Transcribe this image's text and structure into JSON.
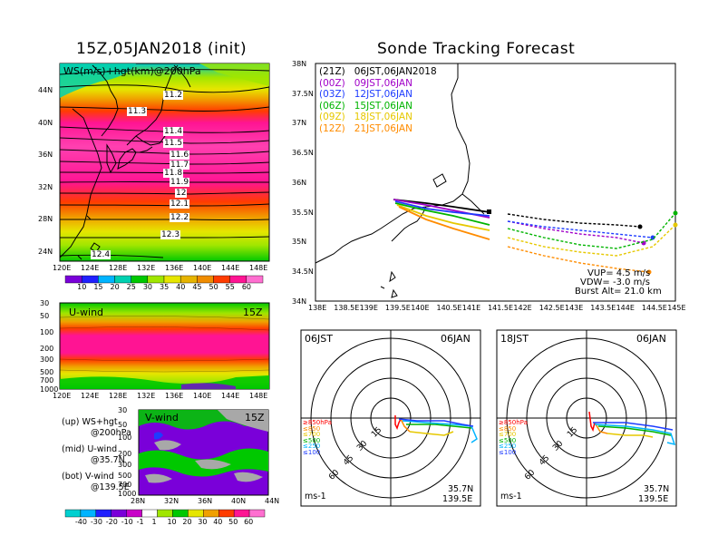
{
  "left_title": "15Z,05JAN2018 (init)",
  "right_title": "Sonde Tracking Forecast",
  "map_panel": {
    "label": "WS(m/s)+hgt(km)@200hPa",
    "lat_ticks": [
      "44N",
      "40N",
      "36N",
      "32N",
      "28N",
      "24N"
    ],
    "lon_ticks": [
      "120E",
      "124E",
      "128E",
      "132E",
      "136E",
      "140E",
      "144E",
      "148E"
    ],
    "contour_labels": [
      "11.2",
      "11.3",
      "11.4",
      "11.5",
      "11.6",
      "11.7",
      "11.8",
      "11.9",
      "12",
      "12.1",
      "12.2",
      "12.3",
      "12.4"
    ],
    "colorbar_ticks": [
      "10",
      "15",
      "20",
      "25",
      "30",
      "35",
      "40",
      "45",
      "50",
      "55",
      "60"
    ],
    "colorbar_colors": [
      "#7a00d9",
      "#2020ff",
      "#00b4ff",
      "#00d0b0",
      "#00c800",
      "#a0e600",
      "#e6e600",
      "#e6b400",
      "#f08c00",
      "#ff3c00",
      "#ff1493",
      "#ff6fd0"
    ]
  },
  "uwind_panel": {
    "label": "U-wind",
    "time": "15Z",
    "p_ticks": [
      "30",
      "50",
      "100",
      "200",
      "300",
      "500",
      "700",
      "1000"
    ],
    "lon_ticks": [
      "120E",
      "124E",
      "128E",
      "132E",
      "136E",
      "140E",
      "144E",
      "148E"
    ]
  },
  "vwind_panel": {
    "label": "V-wind",
    "time": "15Z",
    "p_ticks": [
      "30",
      "50",
      "100",
      "200",
      "300",
      "500",
      "700",
      "1000"
    ],
    "lat_ticks": [
      "28N",
      "32N",
      "36N",
      "40N",
      "44N"
    ],
    "colorbar_ticks": [
      "-40",
      "-30",
      "-20",
      "-10",
      "-1",
      "1",
      "10",
      "20",
      "30",
      "40",
      "50",
      "60"
    ]
  },
  "notes": {
    "up": "(up) WS+hgt",
    "up2": "@200hPa",
    "mid": "(mid) U-wind",
    "mid2": "@35.7N",
    "bot": "(bot) V-wind",
    "bot2": "@139.5E"
  },
  "track_panel": {
    "lat_ticks": [
      "38N",
      "37.5N",
      "37N",
      "36.5N",
      "36N",
      "35.5N",
      "35N",
      "34.5N",
      "34N"
    ],
    "lon_ticks": [
      "138E",
      "138.5E",
      "139E",
      "139.5E",
      "140E",
      "140.5E",
      "141E",
      "141.5E",
      "142E",
      "142.5E",
      "143E",
      "143.5E",
      "144E",
      "144.5E",
      "145E"
    ],
    "legend": [
      {
        "code": "(21Z)",
        "time": "06JST,06JAN2018",
        "color": "#000000"
      },
      {
        "code": "(00Z)",
        "time": "09JST,06JAN",
        "color": "#a000c8"
      },
      {
        "code": "(03Z)",
        "time": "12JST,06JAN",
        "color": "#1e3cff"
      },
      {
        "code": "(06Z)",
        "time": "15JST,06JAN",
        "color": "#00b400"
      },
      {
        "code": "(09Z)",
        "time": "18JST,06JAN",
        "color": "#e6c800"
      },
      {
        "code": "(12Z)",
        "time": "21JST,06JAN",
        "color": "#ff8c00"
      }
    ],
    "vup": "VUP=  4.5  m/s",
    "vdw": "VDW=  -3.0  m/s",
    "burst": "Burst Alt=  21.0  km"
  },
  "hodo_left": {
    "time": "06JST",
    "date": "06JAN",
    "ring_labels": [
      "15",
      "30",
      "45",
      "60"
    ],
    "levels": [
      "≥850hPa",
      "≤850",
      "≤700",
      "≤500",
      "≤250",
      "≤100"
    ],
    "level_colors": [
      "#ff0000",
      "#ff8c00",
      "#e6c800",
      "#00b400",
      "#00b4ff",
      "#1e3cff"
    ],
    "units": "ms-1",
    "lat": "35.7N",
    "lon": "139.5E"
  },
  "hodo_right": {
    "time": "18JST",
    "date": "06JAN",
    "ring_labels": [
      "15",
      "30",
      "45",
      "60"
    ],
    "levels": [
      "≥850hPa",
      "≤850",
      "≤700",
      "≤500",
      "≤250",
      "≤100"
    ],
    "level_colors": [
      "#ff0000",
      "#ff8c00",
      "#e6c800",
      "#00b400",
      "#00b4ff",
      "#1e3cff"
    ],
    "units": "ms-1",
    "lat": "35.7N",
    "lon": "139.5E"
  }
}
